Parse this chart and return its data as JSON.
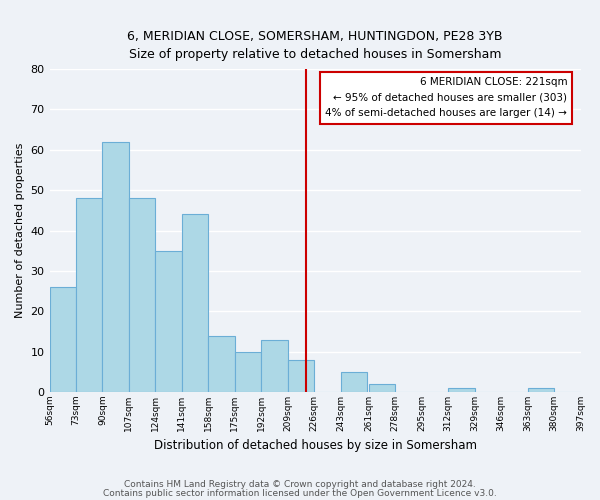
{
  "title_line1": "6, MERIDIAN CLOSE, SOMERSHAM, HUNTINGDON, PE28 3YB",
  "title_line2": "Size of property relative to detached houses in Somersham",
  "xlabel": "Distribution of detached houses by size in Somersham",
  "ylabel": "Number of detached properties",
  "bin_edges": [
    56,
    73,
    90,
    107,
    124,
    141,
    158,
    175,
    192,
    209,
    226,
    243,
    261,
    278,
    295,
    312,
    329,
    346,
    363,
    380,
    397
  ],
  "bin_labels": [
    "56sqm",
    "73sqm",
    "90sqm",
    "107sqm",
    "124sqm",
    "141sqm",
    "158sqm",
    "175sqm",
    "192sqm",
    "209sqm",
    "226sqm",
    "243sqm",
    "261sqm",
    "278sqm",
    "295sqm",
    "312sqm",
    "329sqm",
    "346sqm",
    "363sqm",
    "380sqm",
    "397sqm"
  ],
  "counts": [
    26,
    48,
    62,
    48,
    35,
    44,
    14,
    10,
    13,
    8,
    0,
    5,
    2,
    0,
    0,
    1,
    0,
    0,
    1,
    0
  ],
  "bar_color": "#add8e6",
  "bar_edge_color": "#6baed6",
  "vline_x": 221,
  "vline_color": "#cc0000",
  "annotation_title": "6 MERIDIAN CLOSE: 221sqm",
  "annotation_line1": "← 95% of detached houses are smaller (303)",
  "annotation_line2": "4% of semi-detached houses are larger (14) →",
  "footnote1": "Contains HM Land Registry data © Crown copyright and database right 2024.",
  "footnote2": "Contains public sector information licensed under the Open Government Licence v3.0.",
  "ylim": [
    0,
    80
  ],
  "yticks": [
    0,
    10,
    20,
    30,
    40,
    50,
    60,
    70,
    80
  ],
  "background_color": "#eef2f7",
  "grid_color": "#ffffff",
  "box_facecolor": "#ffffff",
  "box_edgecolor": "#cc0000"
}
